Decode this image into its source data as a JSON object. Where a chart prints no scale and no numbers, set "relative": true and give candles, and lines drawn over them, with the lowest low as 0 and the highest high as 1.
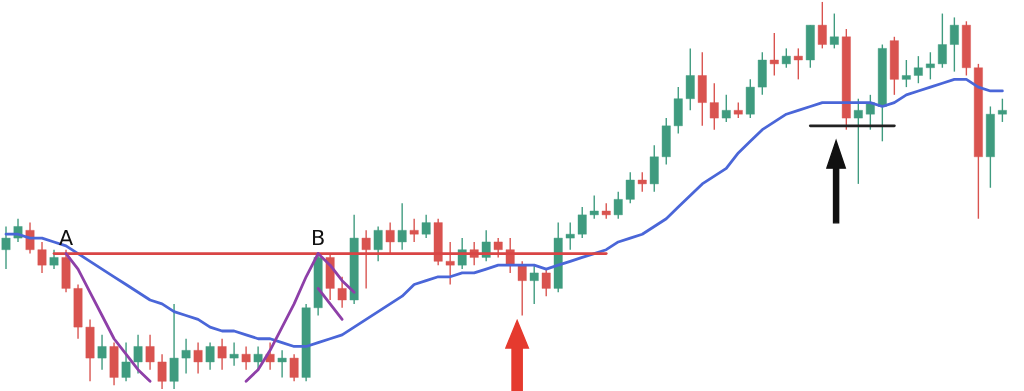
{
  "chart_data": {
    "type": "candlestick",
    "relative": true,
    "categories": [
      null,
      null,
      null,
      null,
      null,
      null,
      null,
      null,
      null,
      null,
      null,
      null,
      null,
      null,
      null,
      null,
      null,
      null,
      null,
      null,
      null,
      null,
      null,
      null,
      null,
      null,
      null,
      null,
      null,
      null,
      null,
      null,
      null,
      null,
      null,
      null,
      null,
      null,
      null,
      null,
      null,
      null,
      null,
      null,
      null,
      null,
      null,
      null,
      null,
      null,
      null,
      null,
      null,
      null,
      null,
      null,
      null,
      null,
      null,
      null,
      null,
      null,
      null,
      null,
      null,
      null,
      null,
      null,
      null,
      null,
      null,
      null,
      null,
      null,
      null,
      null,
      null,
      null,
      null,
      null,
      null,
      null,
      null,
      null
    ],
    "ohlc": [
      [
        0.36,
        0.42,
        0.31,
        0.39
      ],
      [
        0.39,
        0.44,
        0.38,
        0.42
      ],
      [
        0.41,
        0.43,
        0.35,
        0.36
      ],
      [
        0.36,
        0.38,
        0.3,
        0.32
      ],
      [
        0.32,
        0.36,
        0.31,
        0.34
      ],
      [
        0.34,
        0.36,
        0.25,
        0.26
      ],
      [
        0.26,
        0.27,
        0.13,
        0.16
      ],
      [
        0.16,
        0.18,
        0.02,
        0.08
      ],
      [
        0.08,
        0.14,
        0.05,
        0.11
      ],
      [
        0.11,
        0.12,
        0.01,
        0.03
      ],
      [
        0.03,
        0.12,
        0.02,
        0.07
      ],
      [
        0.07,
        0.14,
        0.04,
        0.11
      ],
      [
        0.11,
        0.14,
        0.05,
        0.07
      ],
      [
        0.07,
        0.09,
        0,
        0.02
      ],
      [
        0.02,
        0.22,
        0,
        0.08
      ],
      [
        0.08,
        0.13,
        0.04,
        0.1
      ],
      [
        0.1,
        0.12,
        0.04,
        0.07
      ],
      [
        0.07,
        0.12,
        0.05,
        0.11
      ],
      [
        0.11,
        0.13,
        0.05,
        0.08
      ],
      [
        0.08,
        0.12,
        0.06,
        0.09
      ],
      [
        0.09,
        0.11,
        0.05,
        0.07
      ],
      [
        0.07,
        0.11,
        0.05,
        0.09
      ],
      [
        0.09,
        0.12,
        0.05,
        0.07
      ],
      [
        0.07,
        0.1,
        0.03,
        0.08
      ],
      [
        0.08,
        0.09,
        0.02,
        0.03
      ],
      [
        0.03,
        0.22,
        0.02,
        0.21
      ],
      [
        0.21,
        0.35,
        0.19,
        0.34
      ],
      [
        0.34,
        0.35,
        0.23,
        0.26
      ],
      [
        0.26,
        0.29,
        0.21,
        0.23
      ],
      [
        0.23,
        0.45,
        0.22,
        0.39
      ],
      [
        0.39,
        0.41,
        0.26,
        0.36
      ],
      [
        0.36,
        0.42,
        0.33,
        0.41
      ],
      [
        0.41,
        0.43,
        0.35,
        0.38
      ],
      [
        0.38,
        0.48,
        0.36,
        0.41
      ],
      [
        0.41,
        0.44,
        0.38,
        0.4
      ],
      [
        0.4,
        0.45,
        0.39,
        0.43
      ],
      [
        0.43,
        0.44,
        0.32,
        0.33
      ],
      [
        0.33,
        0.38,
        0.27,
        0.32
      ],
      [
        0.32,
        0.39,
        0.31,
        0.36
      ],
      [
        0.36,
        0.38,
        0.32,
        0.34
      ],
      [
        0.34,
        0.41,
        0.33,
        0.38
      ],
      [
        0.38,
        0.39,
        0.34,
        0.36
      ],
      [
        0.36,
        0.39,
        0.3,
        0.32
      ],
      [
        0.32,
        0.33,
        0.19,
        0.28
      ],
      [
        0.28,
        0.32,
        0.22,
        0.3
      ],
      [
        0.3,
        0.31,
        0.24,
        0.26
      ],
      [
        0.26,
        0.43,
        0.25,
        0.39
      ],
      [
        0.39,
        0.43,
        0.36,
        0.4
      ],
      [
        0.4,
        0.47,
        0.39,
        0.45
      ],
      [
        0.45,
        0.5,
        0.44,
        0.46
      ],
      [
        0.46,
        0.48,
        0.44,
        0.45
      ],
      [
        0.45,
        0.51,
        0.44,
        0.49
      ],
      [
        0.49,
        0.56,
        0.48,
        0.54
      ],
      [
        0.54,
        0.56,
        0.51,
        0.53
      ],
      [
        0.53,
        0.63,
        0.51,
        0.6
      ],
      [
        0.6,
        0.7,
        0.58,
        0.68
      ],
      [
        0.68,
        0.78,
        0.66,
        0.75
      ],
      [
        0.75,
        0.88,
        0.72,
        0.81
      ],
      [
        0.81,
        0.87,
        0.68,
        0.74
      ],
      [
        0.74,
        0.79,
        0.67,
        0.7
      ],
      [
        0.7,
        0.76,
        0.69,
        0.72
      ],
      [
        0.72,
        0.74,
        0.7,
        0.71
      ],
      [
        0.71,
        0.8,
        0.7,
        0.78
      ],
      [
        0.78,
        0.87,
        0.76,
        0.85
      ],
      [
        0.85,
        0.92,
        0.81,
        0.84
      ],
      [
        0.84,
        0.88,
        0.83,
        0.86
      ],
      [
        0.86,
        0.88,
        0.8,
        0.85
      ],
      [
        0.85,
        0.94,
        0.83,
        0.94
      ],
      [
        0.94,
        1,
        0.88,
        0.89
      ],
      [
        0.89,
        0.97,
        0.88,
        0.91
      ],
      [
        0.91,
        0.93,
        0.67,
        0.7
      ],
      [
        0.7,
        0.75,
        0.53,
        0.72
      ],
      [
        0.71,
        0.76,
        0.67,
        0.74
      ],
      [
        0.73,
        0.89,
        0.64,
        0.88
      ],
      [
        0.9,
        0.91,
        0.76,
        0.8
      ],
      [
        0.8,
        0.85,
        0.78,
        0.81
      ],
      [
        0.81,
        0.86,
        0.79,
        0.83
      ],
      [
        0.83,
        0.87,
        0.8,
        0.84
      ],
      [
        0.84,
        0.97,
        0.83,
        0.89
      ],
      [
        0.89,
        0.96,
        0.82,
        0.94
      ],
      [
        0.94,
        0.95,
        0.81,
        0.83
      ],
      [
        0.83,
        0.84,
        0.44,
        0.6
      ],
      [
        0.6,
        0.73,
        0.52,
        0.71
      ],
      [
        0.71,
        0.75,
        0.69,
        0.72
      ]
    ],
    "colors": [
      "#3f9b7f",
      "#3f9b7f",
      "#d9534f",
      "#d9534f",
      "#3f9b7f",
      "#d9534f",
      "#d9534f",
      "#d9534f",
      "#3f9b7f",
      "#d9534f",
      "#3f9b7f",
      "#3f9b7f",
      "#d9534f",
      "#d9534f",
      "#3f9b7f",
      "#3f9b7f",
      "#d9534f",
      "#3f9b7f",
      "#d9534f",
      "#3f9b7f",
      "#d9534f",
      "#3f9b7f",
      "#d9534f",
      "#3f9b7f",
      "#d9534f",
      "#3f9b7f",
      "#3f9b7f",
      "#d9534f",
      "#d9534f",
      "#3f9b7f",
      "#d9534f",
      "#3f9b7f",
      "#d9534f",
      "#3f9b7f",
      "#d9534f",
      "#3f9b7f",
      "#d9534f",
      "#d9534f",
      "#3f9b7f",
      "#d9534f",
      "#3f9b7f",
      "#d9534f",
      "#d9534f",
      "#d9534f",
      "#3f9b7f",
      "#d9534f",
      "#3f9b7f",
      "#3f9b7f",
      "#3f9b7f",
      "#3f9b7f",
      "#d9534f",
      "#3f9b7f",
      "#3f9b7f",
      "#d9534f",
      "#3f9b7f",
      "#3f9b7f",
      "#3f9b7f",
      "#3f9b7f",
      "#d9534f",
      "#d9534f",
      "#3f9b7f",
      "#d9534f",
      "#3f9b7f",
      "#3f9b7f",
      "#d9534f",
      "#3f9b7f",
      "#d9534f",
      "#3f9b7f",
      "#d9534f",
      "#3f9b7f",
      "#d9534f",
      "#3f9b7f",
      "#3f9b7f",
      "#3f9b7f",
      "#d9534f",
      "#3f9b7f",
      "#3f9b7f",
      "#3f9b7f",
      "#3f9b7f",
      "#3f9b7f",
      "#d9534f",
      "#d9534f",
      "#3f9b7f",
      "#3f9b7f"
    ],
    "series": [
      {
        "type": "line",
        "color": "#4a66d8",
        "values": [
          0.4,
          0.4,
          0.39,
          0.39,
          0.38,
          0.37,
          0.35,
          0.33,
          0.31,
          0.29,
          0.27,
          0.25,
          0.23,
          0.22,
          0.2,
          0.19,
          0.18,
          0.16,
          0.15,
          0.15,
          0.14,
          0.13,
          0.13,
          0.12,
          0.11,
          0.11,
          0.12,
          0.13,
          0.14,
          0.16,
          0.18,
          0.2,
          0.22,
          0.24,
          0.27,
          0.28,
          0.29,
          0.29,
          0.3,
          0.3,
          0.31,
          0.32,
          0.32,
          0.32,
          0.32,
          0.31,
          0.32,
          0.33,
          0.34,
          0.35,
          0.36,
          0.38,
          0.39,
          0.4,
          0.42,
          0.44,
          0.47,
          0.5,
          0.53,
          0.55,
          0.57,
          0.61,
          0.64,
          0.67,
          0.69,
          0.71,
          0.72,
          0.73,
          0.74,
          0.74,
          0.74,
          0.74,
          0.74,
          0.73,
          0.74,
          0.76,
          0.77,
          0.78,
          0.79,
          0.8,
          0.8,
          0.78,
          0.77,
          0.77
        ]
      },
      {
        "type": "line",
        "color": "#d94545",
        "values": [
          null,
          null,
          null,
          null,
          0.35,
          0.35,
          0.35,
          0.35,
          0.35,
          0.35,
          0.35,
          0.35,
          0.35,
          0.35,
          0.35,
          0.35,
          0.35,
          0.35,
          0.35,
          0.35,
          0.35,
          0.35,
          0.35,
          0.35,
          0.35,
          0.35,
          0.35,
          0.35,
          0.35,
          0.35,
          0.35,
          0.35,
          0.35,
          0.35,
          0.35,
          0.35,
          0.35,
          0.35,
          0.35,
          0.35,
          0.35,
          0.35,
          0.35,
          0.35,
          0.35,
          0.35,
          0.35,
          0.35,
          0.35,
          0.35,
          0.35,
          null,
          null,
          null,
          null,
          null,
          null,
          null,
          null,
          null,
          null,
          null,
          null,
          null,
          null,
          null,
          null,
          null,
          null,
          null,
          null,
          null,
          null,
          null,
          null,
          null,
          null,
          null,
          null,
          null,
          null,
          null,
          null,
          null
        ]
      },
      {
        "type": "line",
        "color": "#8e3fa8",
        "values": [
          null,
          null,
          null,
          null,
          null,
          0.35,
          0.31,
          0.25,
          0.19,
          0.13,
          0.09,
          0.05,
          0.02,
          null,
          null,
          null,
          null,
          null,
          null,
          null,
          0.02,
          0.05,
          0.1,
          0.16,
          0.22,
          0.29,
          0.35,
          null,
          null,
          null,
          null,
          null,
          null,
          null,
          null,
          null,
          null,
          null,
          null,
          null,
          null,
          null,
          null,
          null,
          null,
          null,
          null,
          null,
          null,
          null,
          null,
          null,
          null,
          null,
          null,
          null,
          null,
          null,
          null,
          null,
          null,
          null,
          null,
          null,
          null,
          null,
          null,
          null,
          null,
          null,
          null,
          null,
          null,
          null,
          null,
          null,
          null,
          null,
          null,
          null,
          null,
          null,
          null,
          null
        ]
      },
      {
        "type": "line",
        "color": "#8e3fa8",
        "values": [
          null,
          null,
          null,
          null,
          null,
          null,
          null,
          null,
          null,
          null,
          null,
          null,
          null,
          null,
          null,
          null,
          null,
          null,
          null,
          null,
          null,
          null,
          null,
          null,
          null,
          null,
          0.35,
          0.32,
          0.28,
          0.25,
          null,
          null,
          null,
          null,
          null,
          null,
          null,
          null,
          null,
          null,
          null,
          null,
          null,
          null,
          null,
          null,
          null,
          null,
          null,
          null,
          null,
          null,
          null,
          null,
          null,
          null,
          null,
          null,
          null,
          null,
          null,
          null,
          null,
          null,
          null,
          null,
          null,
          null,
          null,
          null,
          null,
          null,
          null,
          null,
          null,
          null,
          null,
          null,
          null,
          null,
          null,
          null,
          null,
          null
        ]
      },
      {
        "type": "line",
        "color": "#8e3fa8",
        "values": [
          null,
          null,
          null,
          null,
          null,
          null,
          null,
          null,
          null,
          null,
          null,
          null,
          null,
          null,
          null,
          null,
          null,
          null,
          null,
          null,
          null,
          null,
          null,
          null,
          null,
          null,
          0.26,
          0.22,
          0.18,
          null,
          null,
          null,
          null,
          null,
          null,
          null,
          null,
          null,
          null,
          null,
          null,
          null,
          null,
          null,
          null,
          null,
          null,
          null,
          null,
          null,
          null,
          null,
          null,
          null,
          null,
          null,
          null,
          null,
          null,
          null,
          null,
          null,
          null,
          null,
          null,
          null,
          null,
          null,
          null,
          null,
          null,
          null,
          null,
          null,
          null,
          null,
          null,
          null,
          null,
          null,
          null,
          null,
          null,
          null
        ]
      },
      {
        "type": "line",
        "color": "#222222",
        "values": [
          null,
          null,
          null,
          null,
          null,
          null,
          null,
          null,
          null,
          null,
          null,
          null,
          null,
          null,
          null,
          null,
          null,
          null,
          null,
          null,
          null,
          null,
          null,
          null,
          null,
          null,
          null,
          null,
          null,
          null,
          null,
          null,
          null,
          null,
          null,
          null,
          null,
          null,
          null,
          null,
          null,
          null,
          null,
          null,
          null,
          null,
          null,
          null,
          null,
          null,
          null,
          null,
          null,
          null,
          null,
          null,
          null,
          null,
          null,
          null,
          null,
          null,
          null,
          null,
          null,
          null,
          null,
          0.68,
          0.68,
          0.68,
          0.68,
          0.68,
          0.68,
          0.68,
          0.68,
          null,
          null,
          null,
          null,
          null,
          null,
          null,
          null,
          null
        ]
      }
    ],
    "annotations": [
      {
        "text": "A",
        "y": 0.35
      },
      {
        "text": "B",
        "y": 0.35
      }
    ]
  }
}
